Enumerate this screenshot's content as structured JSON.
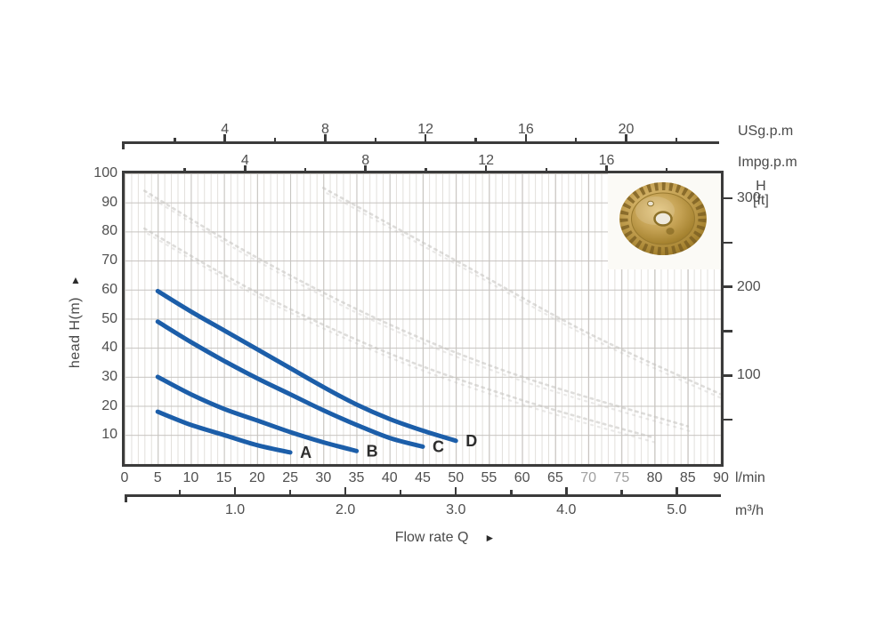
{
  "colors": {
    "curve": "#1c5ea9",
    "curve_label": "#2d2d2d",
    "axis": "#3b3b3b",
    "label": "#4f4f4f",
    "label_muted": "#a0a0a0",
    "grid_minor": "#e2dfdb",
    "grid_major": "#c6c3bf",
    "watermark": "#c3c1be"
  },
  "axes": {
    "usgpm": {
      "unit": "USg.p.m",
      "major": [
        4,
        8,
        12,
        16,
        20
      ],
      "minor_step": 2,
      "max": 22
    },
    "impgpm": {
      "unit": "Impg.p.m",
      "major": [
        4,
        8,
        12,
        16
      ],
      "minor_step": 2,
      "max": 18
    },
    "head_m": {
      "unit": "head H(m)",
      "arrow": "▲",
      "ticks": [
        100,
        90,
        80,
        70,
        60,
        50,
        40,
        30,
        20,
        10
      ]
    },
    "head_ft": {
      "h": "H",
      "unit": "[ft]",
      "labeled": [
        300,
        200,
        100
      ],
      "tick_step": 50,
      "max": 300
    },
    "lmin": {
      "unit": "l/min",
      "step": 5,
      "max": 90,
      "muted": [
        70,
        75
      ]
    },
    "m3h": {
      "unit": "m³/h",
      "major": [
        "1.0",
        "2.0",
        "3.0",
        "4.0",
        "5.0"
      ],
      "minor": [
        0.5,
        1.5,
        2.5,
        3.5,
        4.5
      ]
    },
    "flow": {
      "label": "Flow rate Q",
      "arrow": "►"
    }
  },
  "chart_data": {
    "type": "line",
    "xlabel": "Flow rate Q",
    "ylabel": "head H(m)",
    "x_unit": "l/min",
    "y_unit": "m",
    "xlim": [
      0,
      90
    ],
    "ylim": [
      0,
      100
    ],
    "grid": "on",
    "unit_conversions": {
      "usgpm_to_lmin": 3.785,
      "impgpm_to_lmin": 4.546,
      "m3h_to_lmin": 16.667,
      "ft_to_m": 0.3048
    },
    "series": [
      {
        "name": "A",
        "points": [
          [
            5,
            18
          ],
          [
            10,
            13.5
          ],
          [
            15,
            10
          ],
          [
            20,
            6.5
          ],
          [
            25,
            4
          ]
        ]
      },
      {
        "name": "B",
        "points": [
          [
            5,
            30
          ],
          [
            10,
            24
          ],
          [
            15,
            19
          ],
          [
            20,
            15
          ],
          [
            25,
            11
          ],
          [
            30,
            7.5
          ],
          [
            35,
            4.5
          ]
        ]
      },
      {
        "name": "C",
        "points": [
          [
            5,
            49
          ],
          [
            10,
            42
          ],
          [
            15,
            35.5
          ],
          [
            20,
            29.5
          ],
          [
            25,
            24
          ],
          [
            30,
            18.5
          ],
          [
            35,
            13.5
          ],
          [
            40,
            9
          ],
          [
            45,
            6
          ]
        ]
      },
      {
        "name": "D",
        "points": [
          [
            5,
            59.5
          ],
          [
            10,
            52.5
          ],
          [
            15,
            46
          ],
          [
            20,
            39.5
          ],
          [
            25,
            33
          ],
          [
            30,
            26.5
          ],
          [
            35,
            20.5
          ],
          [
            40,
            15.5
          ],
          [
            45,
            11.5
          ],
          [
            50,
            8
          ]
        ]
      }
    ],
    "watermark_curves": [
      [
        [
          3,
          94
        ],
        [
          20,
          71
        ],
        [
          40,
          48
        ],
        [
          60,
          30
        ],
        [
          85,
          13
        ]
      ],
      [
        [
          3,
          81
        ],
        [
          20,
          59
        ],
        [
          40,
          38
        ],
        [
          60,
          22
        ],
        [
          80,
          9
        ]
      ],
      [
        [
          30,
          95
        ],
        [
          50,
          70
        ],
        [
          70,
          45
        ],
        [
          90,
          24
        ]
      ]
    ]
  }
}
